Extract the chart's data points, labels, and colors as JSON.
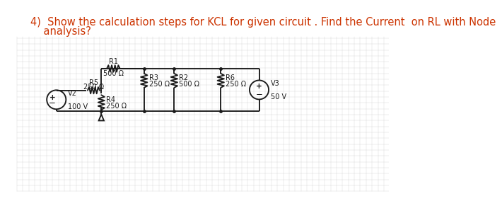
{
  "title_line1": "4)  Show the calculation steps for KCL for given circuit . Find the Current  on RL with Node",
  "title_line2": "    analysis?",
  "title_color": "#cc3300",
  "title_fontsize": 10.5,
  "grid_color": "#c8c8c8",
  "circuit_color": "#1a1a1a",
  "yt": 2.3,
  "ym": 1.9,
  "yb": 1.52,
  "xV2": 0.9,
  "xA": 1.72,
  "xN1": 2.5,
  "xN2": 3.05,
  "xN3": 3.9,
  "xV3": 4.6,
  "vsource_r": 0.175,
  "lw": 1.35,
  "fs_lbl": 7.0
}
